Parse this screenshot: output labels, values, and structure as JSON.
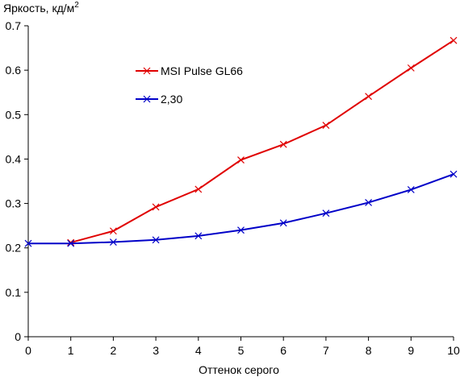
{
  "chart_data": {
    "type": "line",
    "ylabel": "Яркость, кд/м",
    "ylabel_sup": "2",
    "xlabel": "Оттенок серого",
    "xlim": [
      0,
      10
    ],
    "ylim": [
      0,
      0.7
    ],
    "x_ticks": [
      "0",
      "1",
      "2",
      "3",
      "4",
      "5",
      "6",
      "7",
      "8",
      "9",
      "10"
    ],
    "y_ticks": [
      "0",
      "0.1",
      "0.2",
      "0.3",
      "0.4",
      "0.5",
      "0.6",
      "0.7"
    ],
    "grid": false,
    "legend_position": "top-left (inside plot)",
    "series": [
      {
        "name": "MSI Pulse GL66",
        "color": "#e00000",
        "marker": "x",
        "x": [
          1,
          2,
          3,
          4,
          5,
          6,
          7,
          8,
          9,
          10
        ],
        "y": [
          0.212,
          0.238,
          0.292,
          0.332,
          0.398,
          0.433,
          0.476,
          0.541,
          0.605,
          0.667
        ]
      },
      {
        "name": "2,30",
        "color": "#0000c8",
        "marker": "x",
        "x": [
          0,
          1,
          2,
          3,
          4,
          5,
          6,
          7,
          8,
          9,
          10
        ],
        "y": [
          0.21,
          0.21,
          0.213,
          0.218,
          0.227,
          0.24,
          0.256,
          0.278,
          0.302,
          0.331,
          0.366
        ]
      }
    ]
  }
}
